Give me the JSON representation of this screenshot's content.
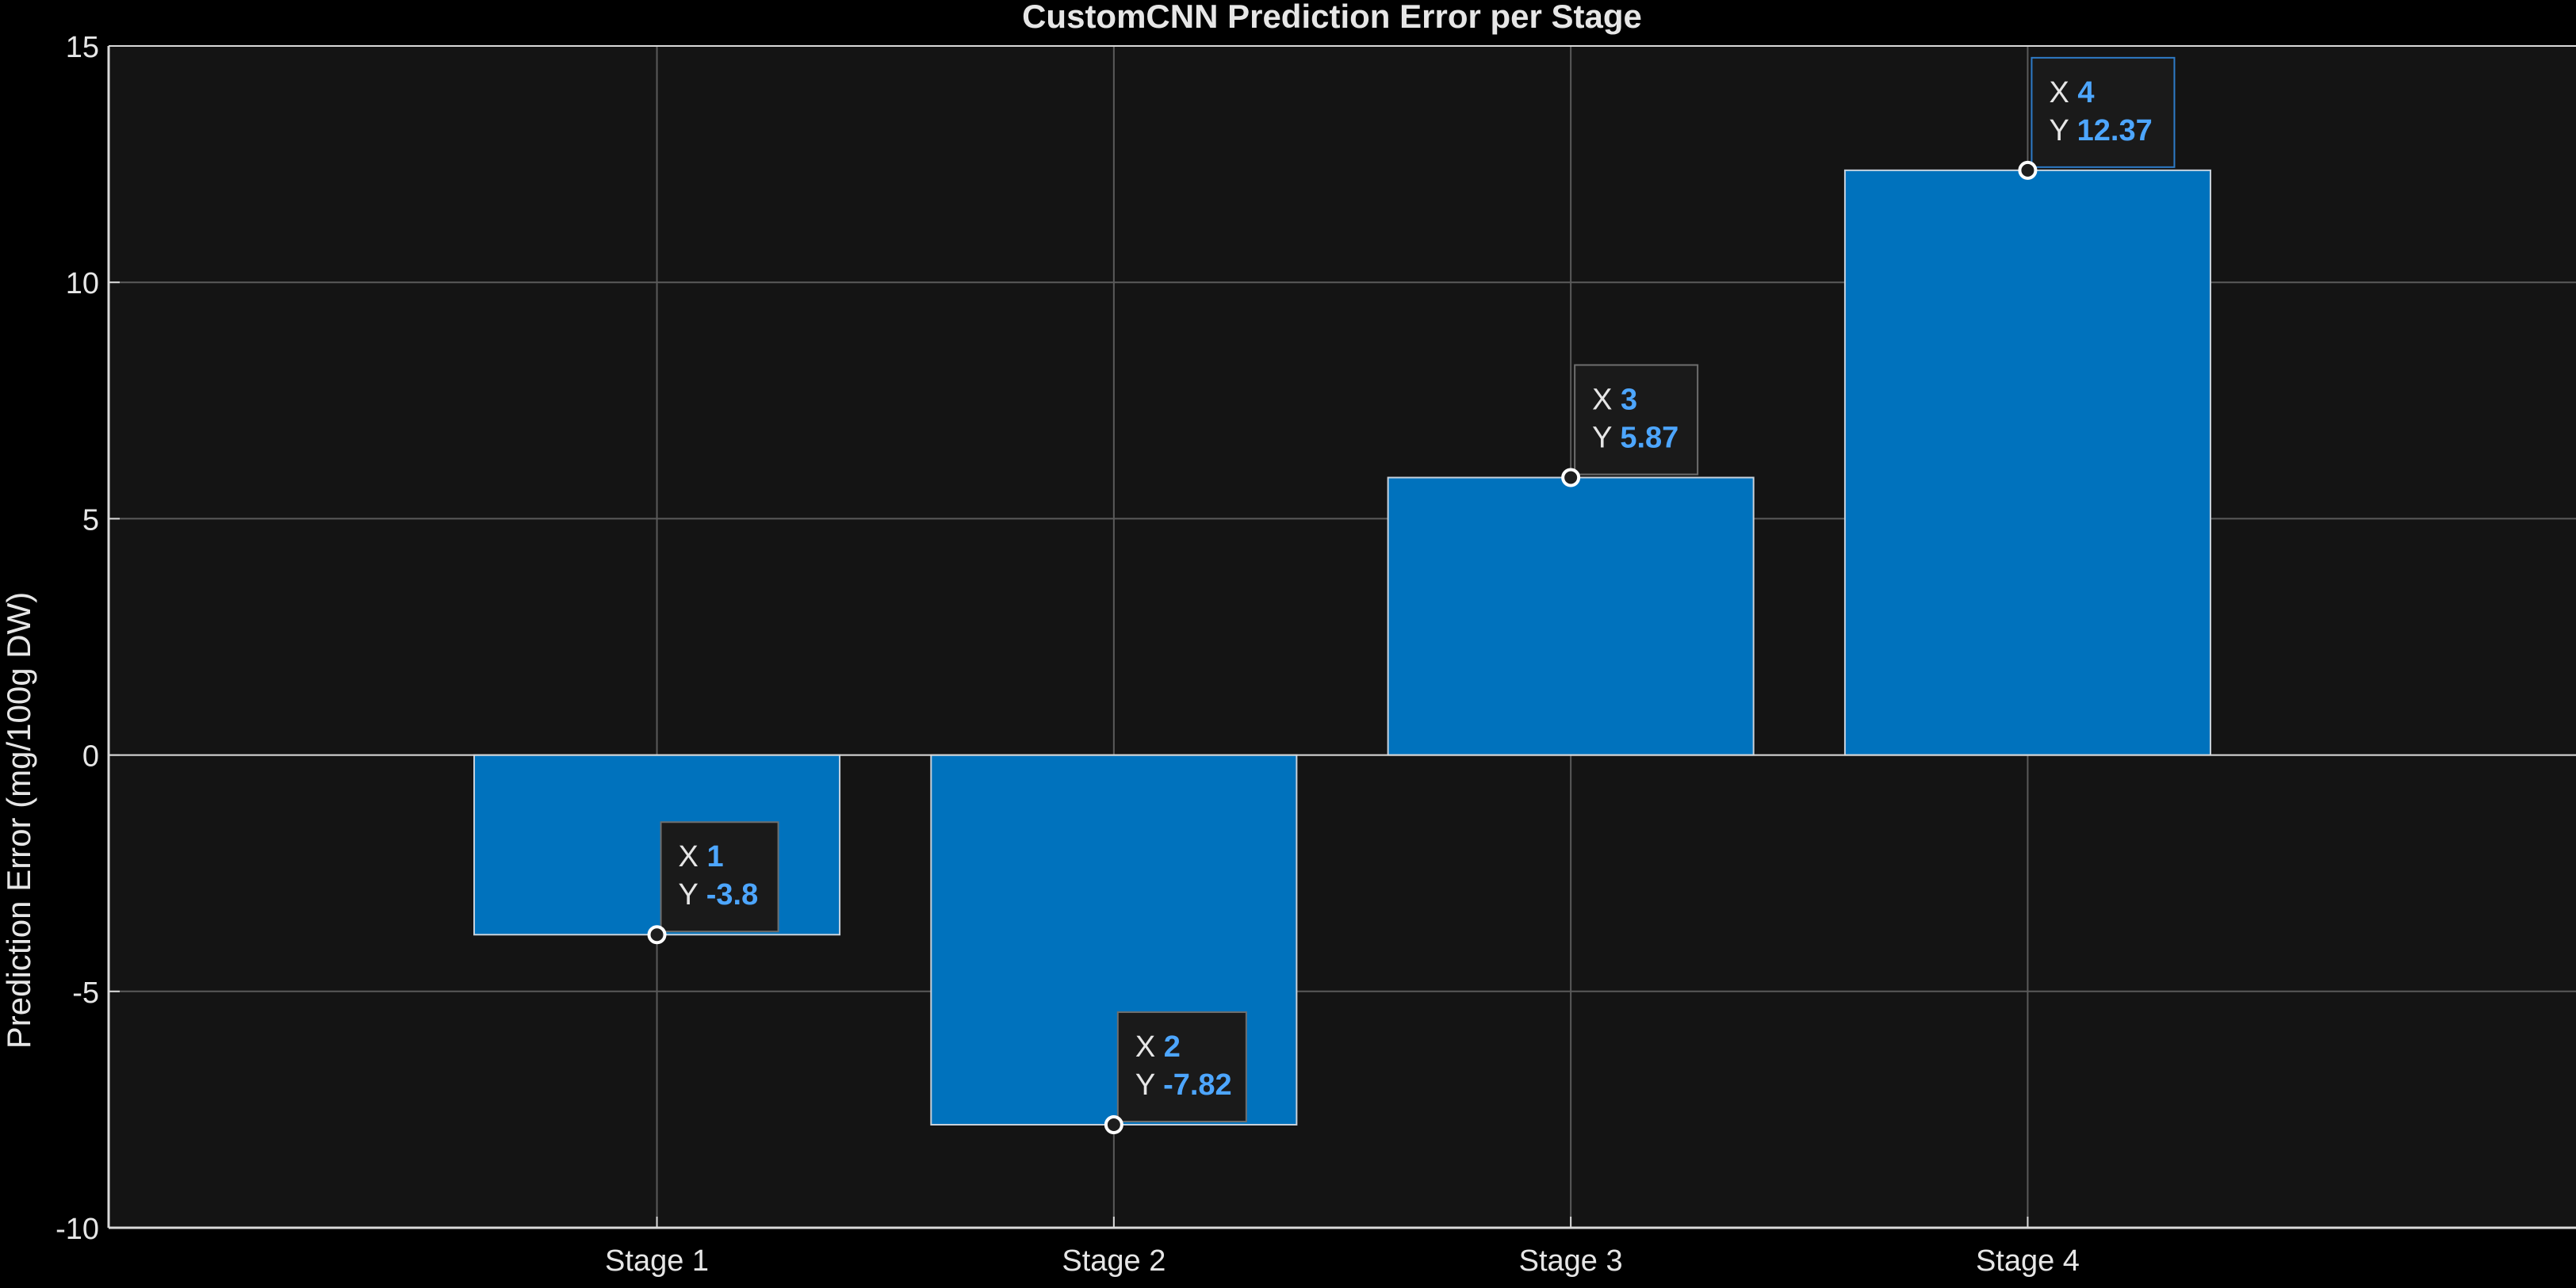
{
  "figure": {
    "background": "#000000"
  },
  "chart_data": {
    "type": "bar",
    "title": "CustomCNN Prediction Error per Stage",
    "xlabel": "",
    "ylabel": "Prediction Error (mg/100g DW)",
    "categories": [
      "Stage 1",
      "Stage 2",
      "Stage 3",
      "Stage 4"
    ],
    "x": [
      1,
      2,
      3,
      4
    ],
    "values": [
      -3.8,
      -7.82,
      5.87,
      12.37
    ],
    "xlim": [
      -0.2,
      5.2
    ],
    "ylim": [
      -10,
      15
    ],
    "yticks": [
      -10,
      -5,
      0,
      5,
      10,
      15
    ],
    "ytick_labels": [
      "-10",
      "-5",
      "0",
      "5",
      "10",
      "15"
    ],
    "grid": true,
    "legend": "none",
    "colors": {
      "axes_background": "#141414",
      "bar_fill": "#0072BD",
      "bar_edge": "#C8D2DC",
      "grid": "#5A5A5A",
      "axis": "#D9D9D9",
      "text": "#E6E6E6",
      "datatip_value": "#4DA6FF",
      "datatip_label": "#E6E6E6",
      "datatip_border": "#6E6E6E",
      "datatip_border_highlight": "#2E7BC7",
      "datatip_background": "#1A1A1A",
      "marker_fill": "#1E1E1E",
      "marker_edge": "#FFFFFF"
    },
    "datatips": [
      {
        "x_label": "X",
        "x_value": "1",
        "y_label": "Y",
        "y_value": "-3.8"
      },
      {
        "x_label": "X",
        "x_value": "2",
        "y_label": "Y",
        "y_value": "-7.82"
      },
      {
        "x_label": "X",
        "x_value": "3",
        "y_label": "Y",
        "y_value": "5.87"
      },
      {
        "x_label": "X",
        "x_value": "4",
        "y_label": "Y",
        "y_value": "12.37"
      }
    ]
  }
}
